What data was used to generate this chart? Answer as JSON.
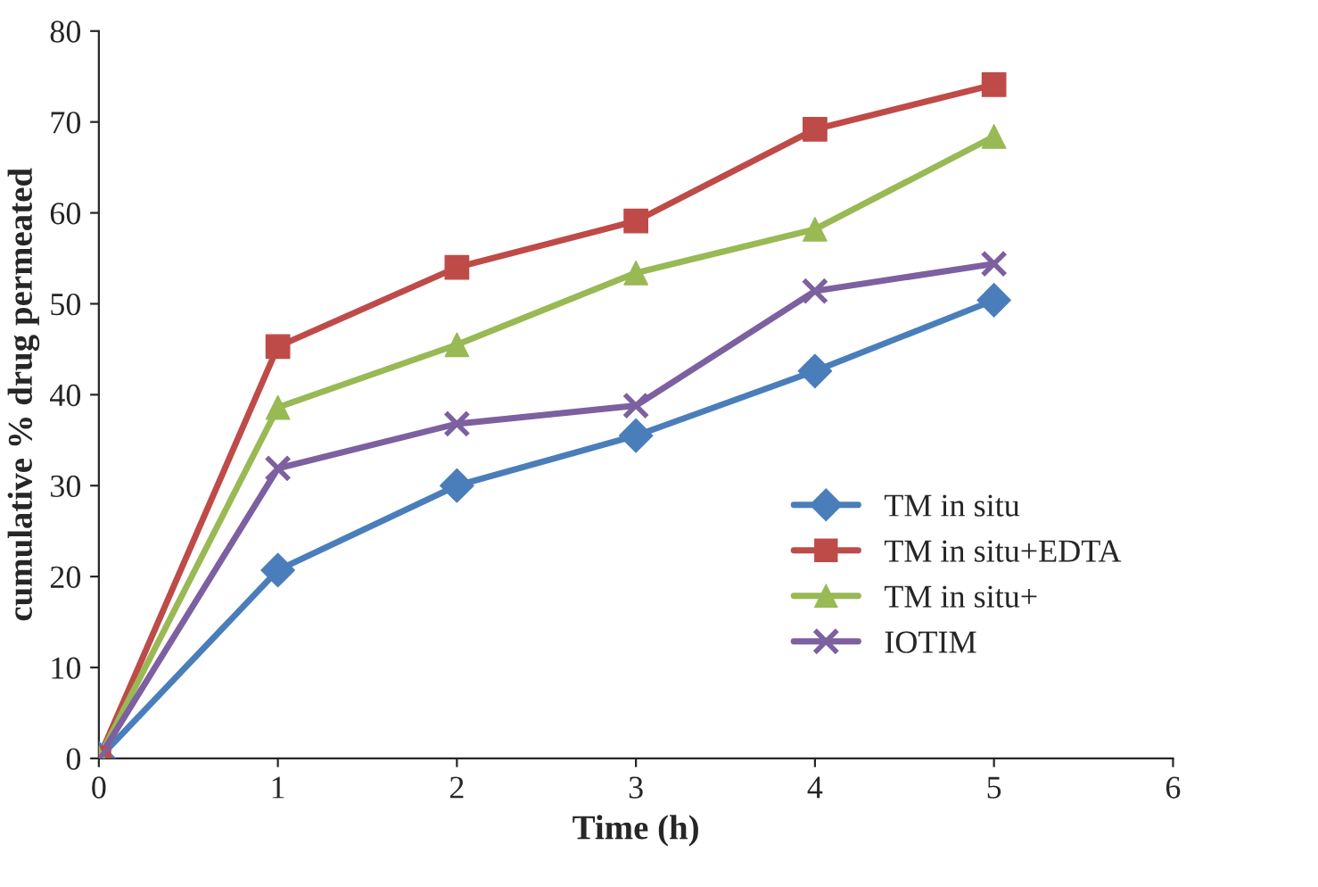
{
  "chart_data": {
    "type": "line",
    "xlabel": "Time (h)",
    "ylabel": "cumulative % drug permeated",
    "x": [
      0,
      1,
      2,
      3,
      4,
      5
    ],
    "series": [
      {
        "name": "TM in situ",
        "color": "#4a7ebb",
        "marker": "diamond",
        "values": [
          0,
          20.7,
          30,
          35.5,
          42.6,
          50.4
        ]
      },
      {
        "name": "TM in situ+EDTA",
        "color": "#be4b48",
        "marker": "square",
        "values": [
          0,
          45.3,
          54,
          59.1,
          69.2,
          74.1
        ]
      },
      {
        "name": "TM in situ+",
        "color": "#98b954",
        "marker": "triangle",
        "values": [
          0,
          38.6,
          45.5,
          53.4,
          58.2,
          68.4
        ]
      },
      {
        "name": "IOTIM",
        "color": "#7d60a0",
        "marker": "cross",
        "values": [
          0,
          31.9,
          36.8,
          38.8,
          51.4,
          54.4
        ]
      }
    ],
    "xlim": [
      0,
      6
    ],
    "xticks": [
      0,
      1,
      2,
      3,
      4,
      5,
      6
    ],
    "ylim": [
      0,
      80
    ],
    "yticks": [
      0,
      10,
      20,
      30,
      40,
      50,
      60,
      70,
      80
    ],
    "grid": false,
    "legend": "right",
    "line_style": "solid"
  }
}
